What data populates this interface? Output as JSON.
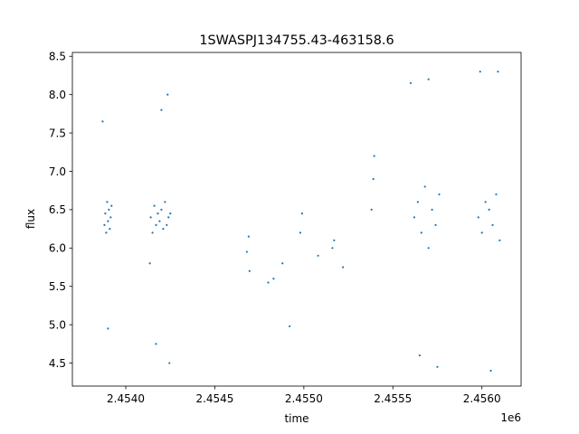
{
  "chart_data": {
    "type": "scatter",
    "title": "1SWASPJ134755.43-463158.6",
    "xlabel": "time",
    "ylabel": "flux",
    "x_offset_label": "1e6",
    "xlim": [
      2453700,
      2456220
    ],
    "ylim": [
      4.2,
      8.55
    ],
    "x_ticks": [
      {
        "value": 2454000,
        "label": "2.4540"
      },
      {
        "value": 2454500,
        "label": "2.4545"
      },
      {
        "value": 2455000,
        "label": "2.4550"
      },
      {
        "value": 2455500,
        "label": "2.4555"
      },
      {
        "value": 2456000,
        "label": "2.4560"
      }
    ],
    "y_ticks": [
      {
        "value": 4.5,
        "label": "4.5"
      },
      {
        "value": 5.0,
        "label": "5.0"
      },
      {
        "value": 5.5,
        "label": "5.5"
      },
      {
        "value": 6.0,
        "label": "6.0"
      },
      {
        "value": 6.5,
        "label": "6.5"
      },
      {
        "value": 7.0,
        "label": "7.0"
      },
      {
        "value": 7.5,
        "label": "7.5"
      },
      {
        "value": 8.0,
        "label": "8.0"
      },
      {
        "value": 8.5,
        "label": "8.5"
      }
    ],
    "grid": false,
    "legend": "none",
    "marker_color": "#1f77b4",
    "series": [
      {
        "values_x": [
          2453880,
          2453885,
          2453890,
          2453895,
          2453900,
          2453905,
          2453910,
          2453915,
          2453920,
          2454140,
          2454150,
          2454160,
          2454170,
          2454180,
          2454190,
          2454200,
          2454210,
          2454220,
          2454230,
          2454240,
          2454250,
          2454680,
          2454690,
          2454695,
          2454800,
          2454830,
          2454880,
          2454920,
          2454980,
          2454990,
          2455080,
          2455160,
          2455170,
          2455220,
          2455380,
          2455390,
          2455395,
          2455620,
          2455640,
          2455660,
          2455680,
          2455700,
          2455720,
          2455740,
          2455760,
          2455980,
          2456000,
          2456020,
          2456040,
          2456060,
          2456080,
          2456100,
          2453870,
          2453900,
          2454135,
          2454170,
          2454200,
          2454235,
          2454245,
          2455600,
          2455650,
          2455700,
          2455750,
          2455990,
          2456050,
          2456090
        ],
        "values_y": [
          6.3,
          6.45,
          6.2,
          6.6,
          6.35,
          6.5,
          6.25,
          6.4,
          6.55,
          6.4,
          6.2,
          6.55,
          6.3,
          6.45,
          6.35,
          6.5,
          6.25,
          6.6,
          6.3,
          6.4,
          6.45,
          5.95,
          6.15,
          5.7,
          5.55,
          5.6,
          5.8,
          4.98,
          6.2,
          6.45,
          5.9,
          6.0,
          6.1,
          5.75,
          6.5,
          6.9,
          7.2,
          6.4,
          6.6,
          6.2,
          6.8,
          6.0,
          6.5,
          6.3,
          6.7,
          6.4,
          6.2,
          6.6,
          6.5,
          6.3,
          6.7,
          6.1,
          7.65,
          4.95,
          5.8,
          4.75,
          7.8,
          8.0,
          4.5,
          8.15,
          4.6,
          8.2,
          4.45,
          8.3,
          4.4,
          8.3
        ]
      }
    ]
  }
}
